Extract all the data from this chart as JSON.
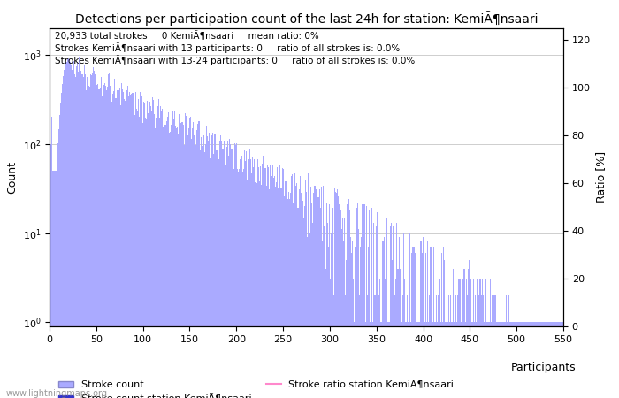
{
  "title": "Detections per participation count of the last 24h for station: KemiÃ¶nsaari",
  "xlabel": "Participants",
  "ylabel_left": "Count",
  "ylabel_right": "Ratio [%]",
  "annotation_lines": [
    "20,933 total strokes     0 KemiÃ¶nsaari     mean ratio: 0%",
    "Strokes KemiÃ¶nsaari with 13 participants: 0     ratio of all strokes is: 0.0%",
    "Strokes KemiÃ¶nsaari with 13-24 participants: 0     ratio of all strokes is: 0.0%"
  ],
  "bar_color": "#aaaaff",
  "station_bar_color": "#3333cc",
  "ratio_line_color": "#ff88cc",
  "watermark": "www.lightningmaps.org",
  "xlim": [
    0,
    550
  ],
  "ylim_right": [
    0,
    125
  ],
  "yticks_right": [
    0,
    20,
    40,
    60,
    80,
    100,
    120
  ],
  "legend_labels": [
    "Stroke count",
    "Stroke count station KemiÃ¶nsaari",
    "Stroke ratio station KemiÃ¶nsaari"
  ]
}
